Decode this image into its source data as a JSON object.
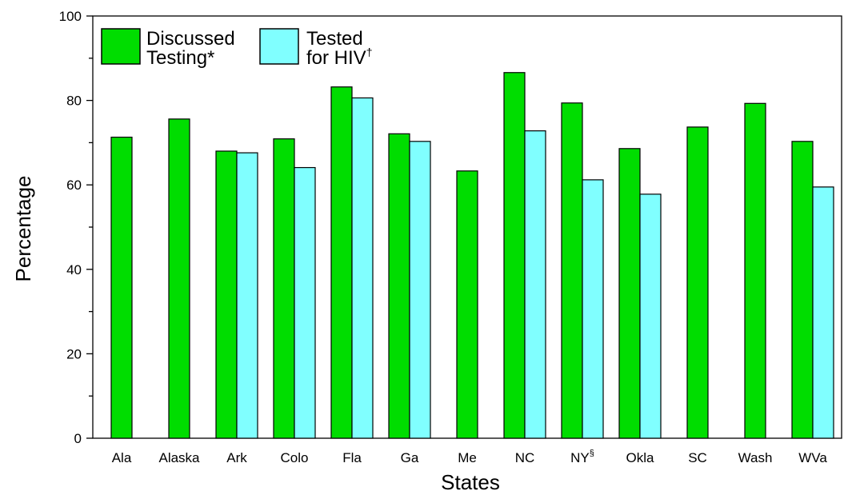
{
  "chart_data": {
    "type": "bar",
    "title": "",
    "xlabel": "States",
    "ylabel": "Percentage",
    "ylim": [
      0,
      100
    ],
    "yticks": [
      "0",
      "20",
      "40",
      "60",
      "80",
      "100"
    ],
    "categories": [
      "Ala",
      "Alaska",
      "Ark",
      "Colo",
      "Fla",
      "Ga",
      "Me",
      "NC",
      "NY",
      "Okla",
      "SC",
      "Wash",
      "WVa"
    ],
    "category_superscripts": [
      "",
      "",
      "",
      "",
      "",
      "",
      "",
      "",
      "§",
      "",
      "",
      "",
      ""
    ],
    "series": [
      {
        "name": "Discussed Testing*",
        "name_lines": [
          "Discussed",
          "Testing*"
        ],
        "color": "#00dd00",
        "values": [
          71.3,
          75.6,
          68.0,
          70.9,
          83.2,
          72.1,
          63.3,
          86.6,
          79.4,
          68.6,
          73.7,
          79.3,
          70.3
        ]
      },
      {
        "name": "Tested for HIV†",
        "name_lines": [
          "Tested",
          "for HIV"
        ],
        "name_superscript": "†",
        "color": "#80ffff",
        "values": [
          null,
          null,
          67.6,
          64.1,
          80.6,
          70.3,
          null,
          72.8,
          61.2,
          57.8,
          null,
          null,
          59.5
        ]
      }
    ],
    "grid": false,
    "legend_position": "top-left"
  }
}
